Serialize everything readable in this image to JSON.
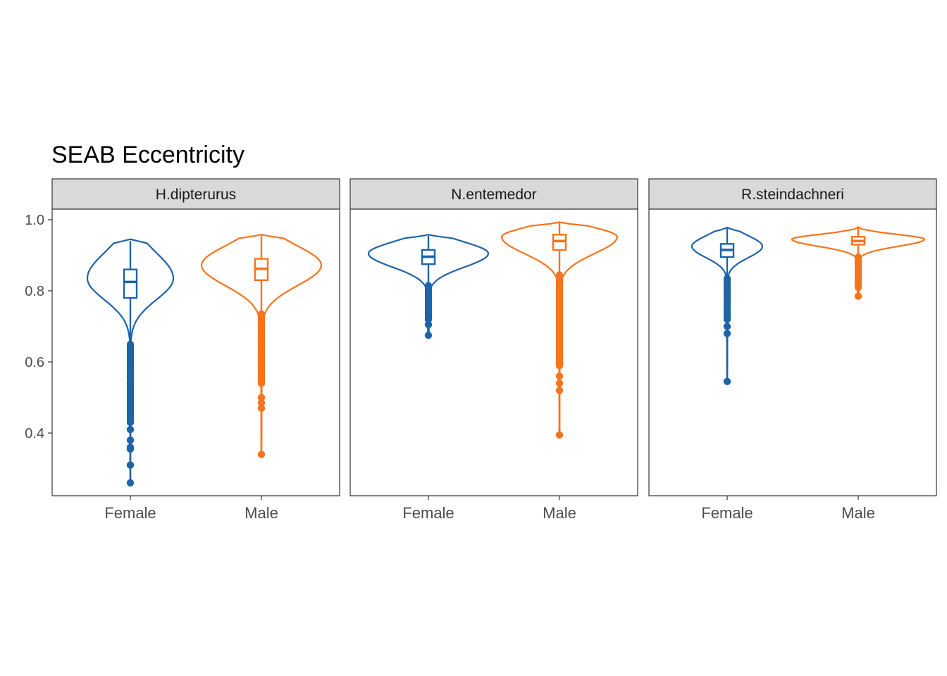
{
  "chart_data": {
    "type": "violin",
    "title": "SEAB Eccentricity",
    "xlabel": "",
    "ylabel": "",
    "ylim": [
      0.22,
      1.03
    ],
    "yticks": [
      0.4,
      0.6,
      0.8,
      1.0
    ],
    "ytick_labels": [
      "0.4",
      "0.6",
      "0.8",
      "1.0"
    ],
    "categories": [
      "Female",
      "Male"
    ],
    "colors": {
      "Female": "#1f63a8",
      "Male": "#f8731b"
    },
    "grid": false,
    "legend": "none",
    "panels": [
      {
        "label": "H.dipterurus",
        "groups": [
          {
            "category": "Female",
            "whisker_low": 0.65,
            "q1": 0.78,
            "median": 0.825,
            "q3": 0.86,
            "whisker_high": 0.94,
            "violin_max": 0.945,
            "violin_min": 0.26,
            "outliers": [
              0.64,
              0.62,
              0.6,
              0.58,
              0.56,
              0.54,
              0.52,
              0.5,
              0.49,
              0.47,
              0.45,
              0.43,
              0.41,
              0.38,
              0.36,
              0.355,
              0.31,
              0.26
            ]
          },
          {
            "category": "Male",
            "whisker_low": 0.735,
            "q1": 0.83,
            "median": 0.862,
            "q3": 0.89,
            "whisker_high": 0.955,
            "violin_max": 0.958,
            "violin_min": 0.34,
            "outliers": [
              0.72,
              0.7,
              0.68,
              0.66,
              0.64,
              0.61,
              0.6,
              0.56,
              0.54,
              0.5,
              0.485,
              0.47,
              0.34
            ]
          }
        ]
      },
      {
        "label": "N.entemedor",
        "groups": [
          {
            "category": "Female",
            "whisker_low": 0.815,
            "q1": 0.875,
            "median": 0.896,
            "q3": 0.915,
            "whisker_high": 0.955,
            "violin_max": 0.958,
            "violin_min": 0.675,
            "outliers": [
              0.8,
              0.78,
              0.76,
              0.74,
              0.72,
              0.705,
              0.675
            ]
          },
          {
            "category": "Male",
            "whisker_low": 0.845,
            "q1": 0.915,
            "median": 0.94,
            "q3": 0.958,
            "whisker_high": 0.99,
            "violin_max": 0.993,
            "violin_min": 0.395,
            "outliers": [
              0.83,
              0.8,
              0.77,
              0.74,
              0.71,
              0.68,
              0.65,
              0.62,
              0.59,
              0.56,
              0.54,
              0.52,
              0.395
            ]
          }
        ]
      },
      {
        "label": "R.steindachneri",
        "groups": [
          {
            "category": "Female",
            "whisker_low": 0.835,
            "q1": 0.895,
            "median": 0.915,
            "q3": 0.932,
            "whisker_high": 0.975,
            "violin_max": 0.978,
            "violin_min": 0.545,
            "outliers": [
              0.82,
              0.8,
              0.78,
              0.76,
              0.74,
              0.72,
              0.7,
              0.68,
              0.545
            ]
          },
          {
            "category": "Male",
            "whisker_low": 0.895,
            "q1": 0.93,
            "median": 0.94,
            "q3": 0.952,
            "whisker_high": 0.978,
            "violin_max": 0.98,
            "violin_min": 0.785,
            "outliers": [
              0.88,
              0.86,
              0.84,
              0.82,
              0.81,
              0.785
            ]
          }
        ]
      }
    ]
  }
}
